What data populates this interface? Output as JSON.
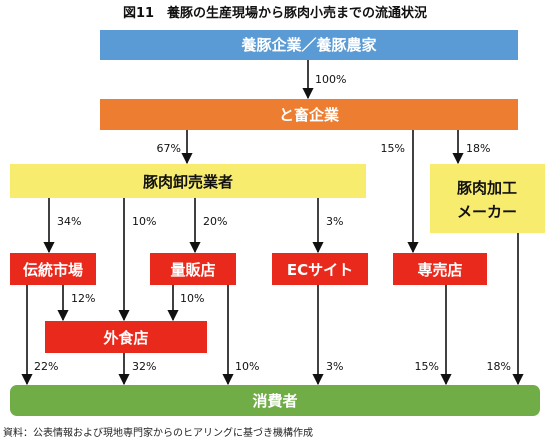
{
  "title": "図11　養豚の生産現場から豚肉小売までの流通状況",
  "source": "資料：公表情報および現地専門家からのヒアリングに基づき機構作成",
  "nodes": {
    "farm": {
      "label": "養豚企業／養豚農家",
      "color": "#5b9bd5"
    },
    "slaughter": {
      "label": "と畜企業",
      "color": "#ed7d31"
    },
    "wholesale": {
      "label": "豚肉卸売業者",
      "color": "#f7ec6e"
    },
    "processor": {
      "label_line1": "豚肉加工",
      "label_line2": "メーカー",
      "color": "#f7ec6e"
    },
    "market": {
      "label": "伝統市場",
      "color": "#e8291c"
    },
    "mass": {
      "label": "量販店",
      "color": "#e8291c"
    },
    "ec": {
      "label": "ECサイト",
      "color": "#e8291c"
    },
    "specialty": {
      "label": "専売店",
      "color": "#e8291c"
    },
    "food": {
      "label": "外食店",
      "color": "#e8291c"
    },
    "consumer": {
      "label": "消費者",
      "color": "#70ad47"
    }
  },
  "flows": {
    "farm_to_slaughter": "100%",
    "slaughter_to_wholesale": "67%",
    "slaughter_to_specialty": "15%",
    "slaughter_to_processor": "18%",
    "wholesale_to_market": "34%",
    "wholesale_to_food": "10%",
    "wholesale_to_mass": "20%",
    "wholesale_to_ec": "3%",
    "market_to_food": "12%",
    "mass_to_food": "10%",
    "market_to_consumer": "22%",
    "food_to_consumer": "32%",
    "mass_to_consumer": "10%",
    "ec_to_consumer": "3%",
    "specialty_to_consumer": "15%",
    "processor_to_consumer": "18%"
  }
}
